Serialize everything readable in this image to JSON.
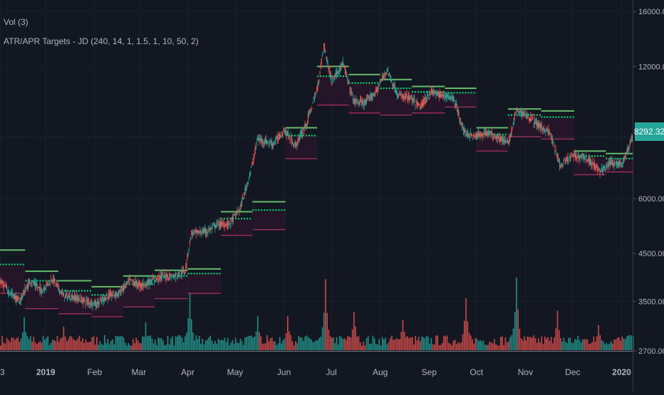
{
  "legend": {
    "volume": "Vol (3)",
    "indicator": "ATR/APR Targets - JD (240, 14, 1, 1.5, 1, 10, 50, 2)"
  },
  "last_price_label": "8292.32",
  "colors": {
    "background": "#131722",
    "grid": "#1c202b",
    "axis_text": "#b2b5be",
    "up_candle": "#26a69a",
    "down_candle": "#ef5350",
    "target_upper": "#66bb6a",
    "target_mid": "#00e676",
    "target_lower": "#b03060",
    "last_price_bg": "#26a69a"
  },
  "chart_data": {
    "type": "candlestick",
    "scale": "log",
    "title": "",
    "y_ticks": [
      "16000.00",
      "12000.00",
      "6000.00",
      "4500.00",
      "3500.00",
      "2700.00"
    ],
    "x_ticks": [
      "3",
      "2019",
      "Feb",
      "Mar",
      "Apr",
      "May",
      "Jun",
      "Jul",
      "Aug",
      "Sep",
      "Oct",
      "Nov",
      "Dec",
      "2020"
    ],
    "ylim": [
      2700,
      16500
    ],
    "xlim": [
      "2018-12-03",
      "2020-01-08"
    ],
    "price_path": [
      [
        "2018-12-01",
        3950
      ],
      [
        "2018-12-08",
        3700
      ],
      [
        "2018-12-15",
        3500
      ],
      [
        "2018-12-22",
        3900
      ],
      [
        "2018-12-29",
        3700
      ],
      [
        "2019-01-05",
        3950
      ],
      [
        "2019-01-12",
        3600
      ],
      [
        "2019-01-19",
        3580
      ],
      [
        "2019-01-26",
        3500
      ],
      [
        "2019-02-02",
        3450
      ],
      [
        "2019-02-09",
        3600
      ],
      [
        "2019-02-16",
        3650
      ],
      [
        "2019-02-23",
        3900
      ],
      [
        "2019-03-02",
        3800
      ],
      [
        "2019-03-09",
        3900
      ],
      [
        "2019-03-16",
        4000
      ],
      [
        "2019-03-23",
        4000
      ],
      [
        "2019-03-30",
        4100
      ],
      [
        "2019-04-03",
        5000
      ],
      [
        "2019-04-13",
        5050
      ],
      [
        "2019-04-20",
        5250
      ],
      [
        "2019-04-27",
        5250
      ],
      [
        "2019-05-04",
        5700
      ],
      [
        "2019-05-11",
        7000
      ],
      [
        "2019-05-15",
        8200
      ],
      [
        "2019-05-25",
        8000
      ],
      [
        "2019-06-01",
        8600
      ],
      [
        "2019-06-08",
        7900
      ],
      [
        "2019-06-15",
        8900
      ],
      [
        "2019-06-22",
        10700
      ],
      [
        "2019-06-26",
        13400
      ],
      [
        "2019-07-01",
        11100
      ],
      [
        "2019-07-08",
        12200
      ],
      [
        "2019-07-15",
        10000
      ],
      [
        "2019-07-22",
        9900
      ],
      [
        "2019-07-29",
        10500
      ],
      [
        "2019-08-05",
        11800
      ],
      [
        "2019-08-12",
        10300
      ],
      [
        "2019-08-19",
        10200
      ],
      [
        "2019-08-26",
        9700
      ],
      [
        "2019-09-02",
        10500
      ],
      [
        "2019-09-09",
        10300
      ],
      [
        "2019-09-16",
        10200
      ],
      [
        "2019-09-23",
        8500
      ],
      [
        "2019-09-30",
        8300
      ],
      [
        "2019-10-07",
        8500
      ],
      [
        "2019-10-14",
        8300
      ],
      [
        "2019-10-21",
        8000
      ],
      [
        "2019-10-26",
        9500
      ],
      [
        "2019-11-02",
        9300
      ],
      [
        "2019-11-09",
        8800
      ],
      [
        "2019-11-16",
        8500
      ],
      [
        "2019-11-23",
        7100
      ],
      [
        "2019-11-30",
        7500
      ],
      [
        "2019-12-07",
        7500
      ],
      [
        "2019-12-14",
        7200
      ],
      [
        "2019-12-18",
        6900
      ],
      [
        "2019-12-25",
        7250
      ],
      [
        "2020-01-01",
        7200
      ],
      [
        "2020-01-08",
        8292.32
      ]
    ],
    "target_levels": [
      {
        "start": "2018-12-01",
        "end": "2018-12-19",
        "upper": 4580,
        "mid": 4250,
        "lower": 3650
      },
      {
        "start": "2018-12-19",
        "end": "2019-01-09",
        "upper": 4100,
        "mid": 3900,
        "lower": 3370
      },
      {
        "start": "2019-01-09",
        "end": "2019-01-30",
        "upper": 3900,
        "mid": 3700,
        "lower": 3280
      },
      {
        "start": "2019-01-30",
        "end": "2019-02-19",
        "upper": 3780,
        "mid": 3620,
        "lower": 3230
      },
      {
        "start": "2019-02-19",
        "end": "2019-03-11",
        "upper": 4000,
        "mid": 3830,
        "lower": 3400
      },
      {
        "start": "2019-03-11",
        "end": "2019-04-01",
        "upper": 4120,
        "mid": 4000,
        "lower": 3550
      },
      {
        "start": "2019-04-01",
        "end": "2019-04-22",
        "upper": 4150,
        "mid": 4050,
        "lower": 3650
      },
      {
        "start": "2019-04-22",
        "end": "2019-05-12",
        "upper": 5600,
        "mid": 5400,
        "lower": 4950
      },
      {
        "start": "2019-05-12",
        "end": "2019-06-02",
        "upper": 5900,
        "mid": 5650,
        "lower": 5100
      },
      {
        "start": "2019-06-02",
        "end": "2019-06-22",
        "upper": 8700,
        "mid": 8350,
        "lower": 7400
      },
      {
        "start": "2019-06-22",
        "end": "2019-07-12",
        "upper": 12000,
        "mid": 11400,
        "lower": 9800
      },
      {
        "start": "2019-07-12",
        "end": "2019-08-01",
        "upper": 11500,
        "mid": 11000,
        "lower": 9400
      },
      {
        "start": "2019-08-01",
        "end": "2019-08-21",
        "upper": 11200,
        "mid": 10700,
        "lower": 9300
      },
      {
        "start": "2019-08-21",
        "end": "2019-09-11",
        "upper": 10800,
        "mid": 10500,
        "lower": 9400
      },
      {
        "start": "2019-09-11",
        "end": "2019-10-01",
        "upper": 10700,
        "mid": 10450,
        "lower": 9700
      },
      {
        "start": "2019-10-01",
        "end": "2019-10-21",
        "upper": 8700,
        "mid": 8400,
        "lower": 7700
      },
      {
        "start": "2019-10-21",
        "end": "2019-11-11",
        "upper": 9600,
        "mid": 9300,
        "lower": 8300
      },
      {
        "start": "2019-11-11",
        "end": "2019-12-02",
        "upper": 9500,
        "mid": 9200,
        "lower": 8200
      },
      {
        "start": "2019-12-02",
        "end": "2019-12-22",
        "upper": 7700,
        "mid": 7500,
        "lower": 6800
      },
      {
        "start": "2019-12-22",
        "end": "2020-01-08",
        "upper": 7600,
        "mid": 7400,
        "lower": 6900
      }
    ],
    "volume_spikes": [
      [
        "2018-12-18",
        0.33
      ],
      [
        "2019-01-12",
        0.25
      ],
      [
        "2019-03-05",
        0.28
      ],
      [
        "2019-04-02",
        0.62
      ],
      [
        "2019-05-15",
        0.38
      ],
      [
        "2019-06-03",
        0.35
      ],
      [
        "2019-06-27",
        0.75
      ],
      [
        "2019-07-15",
        0.42
      ],
      [
        "2019-08-15",
        0.33
      ],
      [
        "2019-09-24",
        0.55
      ],
      [
        "2019-10-26",
        0.78
      ],
      [
        "2019-11-21",
        0.4
      ],
      [
        "2019-12-17",
        0.28
      ],
      [
        "2020-01-07",
        0.15
      ]
    ]
  }
}
